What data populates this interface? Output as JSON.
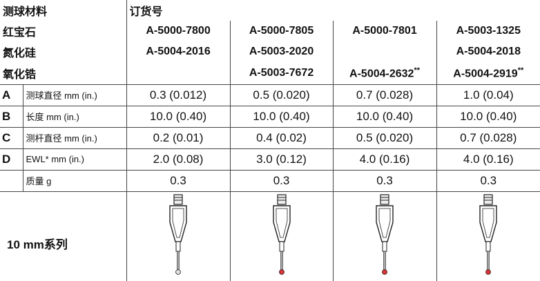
{
  "header": {
    "material_label": "测球材料",
    "order_label": "订货号"
  },
  "materials": [
    {
      "name": "红宝石",
      "codes": [
        "A-5000-7800",
        "A-5000-7805",
        "A-5000-7801",
        "A-5003-1325"
      ]
    },
    {
      "name": "氮化硅",
      "codes": [
        "A-5004-2016",
        "A-5003-2020",
        null,
        "A-5004-2018"
      ]
    },
    {
      "name": "氧化锆",
      "codes": [
        null,
        "A-5003-7672",
        {
          "code": "A-5004-2632",
          "mark": "**"
        },
        {
          "code": "A-5004-2919",
          "mark": "**"
        }
      ]
    }
  ],
  "specs": [
    {
      "key": "A",
      "label": "测球直径 mm (in.)",
      "values": [
        "0.3 (0.012)",
        "0.5 (0.020)",
        "0.7 (0.028)",
        "1.0 (0.04)"
      ]
    },
    {
      "key": "B",
      "label": "长度 mm (in.)",
      "values": [
        "10.0 (0.40)",
        "10.0 (0.40)",
        "10.0 (0.40)",
        "10.0 (0.40)"
      ]
    },
    {
      "key": "C",
      "label": "测杆直径 mm (in.)",
      "values": [
        "0.2 (0.01)",
        "0.4 (0.02)",
        "0.5 (0.020)",
        "0.7 (0.028)"
      ]
    },
    {
      "key": "D",
      "label": "EWL* mm (in.)",
      "values": [
        "2.0 (0.08)",
        "3.0 (0.12)",
        "4.0 (0.16)",
        "4.0 (0.16)"
      ]
    },
    {
      "key": null,
      "label": "质量 g",
      "values": [
        "0.3",
        "0.3",
        "0.3",
        "0.3"
      ]
    }
  ],
  "series": {
    "label": "10 mm系列"
  }
}
